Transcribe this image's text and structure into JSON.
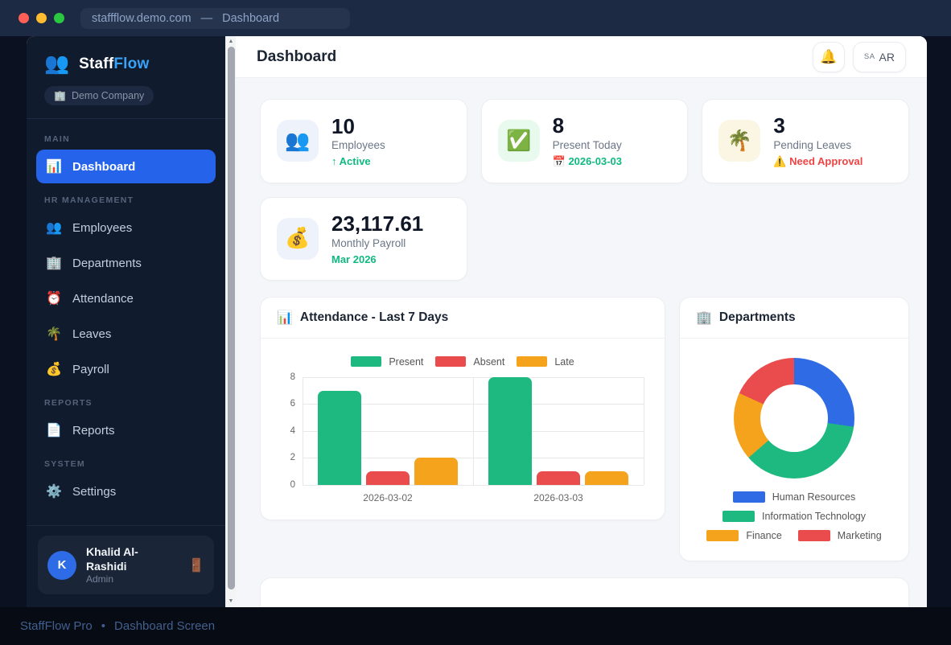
{
  "browser": {
    "url": "staffflow.demo.com",
    "separator": "—",
    "page": "Dashboard"
  },
  "header": {
    "title": "Dashboard",
    "bell_icon": "🔔",
    "lang_button": {
      "flag": "SA",
      "label": "AR"
    }
  },
  "sidebar": {
    "logo": {
      "icon": "👥",
      "brand_part1": "Staff",
      "brand_part2": "Flow"
    },
    "company_badge": {
      "icon": "🏢",
      "label": "Demo Company"
    },
    "sections": [
      {
        "label": "MAIN",
        "items": [
          {
            "icon": "📊",
            "label": "Dashboard",
            "active": true
          }
        ]
      },
      {
        "label": "HR MANAGEMENT",
        "items": [
          {
            "icon": "👥",
            "label": "Employees",
            "active": false
          },
          {
            "icon": "🏢",
            "label": "Departments",
            "active": false
          },
          {
            "icon": "⏰",
            "label": "Attendance",
            "active": false
          },
          {
            "icon": "🌴",
            "label": "Leaves",
            "active": false
          },
          {
            "icon": "💰",
            "label": "Payroll",
            "active": false
          }
        ]
      },
      {
        "label": "REPORTS",
        "items": [
          {
            "icon": "📄",
            "label": "Reports",
            "active": false
          }
        ]
      },
      {
        "label": "SYSTEM",
        "items": [
          {
            "icon": "⚙️",
            "label": "Settings",
            "active": false
          }
        ]
      }
    ],
    "user": {
      "initial": "K",
      "name": "Khalid Al-Rashidi",
      "role": "Admin",
      "logout_icon": "🚪"
    }
  },
  "stats": [
    {
      "icon": "👥",
      "icon_bg": "#eef2fb",
      "value": "10",
      "label": "Employees",
      "sub": "↑ Active",
      "sub_color": "#10b981"
    },
    {
      "icon": "✅",
      "icon_bg": "#e8f9ee",
      "value": "8",
      "label": "Present Today",
      "sub": "📅 2026-03-03",
      "sub_color": "#10b981"
    },
    {
      "icon": "🌴",
      "icon_bg": "#fbf6e3",
      "value": "3",
      "label": "Pending Leaves",
      "sub": "⚠️ Need Approval",
      "sub_color": "#ef4444"
    },
    {
      "icon": "💰",
      "icon_bg": "#eef2fb",
      "value": "23,117.61",
      "label": "Monthly Payroll",
      "sub": "Mar 2026",
      "sub_color": "#10b981"
    }
  ],
  "attendance_card": {
    "title_icon": "📊",
    "title": "Attendance - Last 7 Days"
  },
  "departments_card": {
    "title_icon": "🏢",
    "title": "Departments"
  },
  "chart_data": [
    {
      "type": "bar",
      "title": "Attendance - Last 7 Days",
      "categories": [
        "2026-03-02",
        "2026-03-03"
      ],
      "series": [
        {
          "name": "Present",
          "values": [
            7,
            8
          ],
          "color": "#1db981"
        },
        {
          "name": "Absent",
          "values": [
            1,
            1
          ],
          "color": "#ea4b4c"
        },
        {
          "name": "Late",
          "values": [
            2,
            1
          ],
          "color": "#f5a31c"
        }
      ],
      "xlabel": "",
      "ylabel": "",
      "ylim": [
        0,
        8
      ],
      "yticks": [
        0,
        2,
        4,
        6,
        8
      ],
      "grid": true,
      "legend_position": "top"
    },
    {
      "type": "pie",
      "title": "Departments",
      "labels": [
        "Human Resources",
        "Information Technology",
        "Finance",
        "Marketing"
      ],
      "values": [
        3,
        4,
        2,
        2
      ],
      "colors": [
        "#2f6be4",
        "#1db981",
        "#f5a31c",
        "#ea4b4c"
      ],
      "donut": true,
      "legend_position": "bottom"
    }
  ],
  "statusbar": {
    "app": "StaffFlow Pro",
    "bullet": "•",
    "screen": "Dashboard Screen"
  }
}
